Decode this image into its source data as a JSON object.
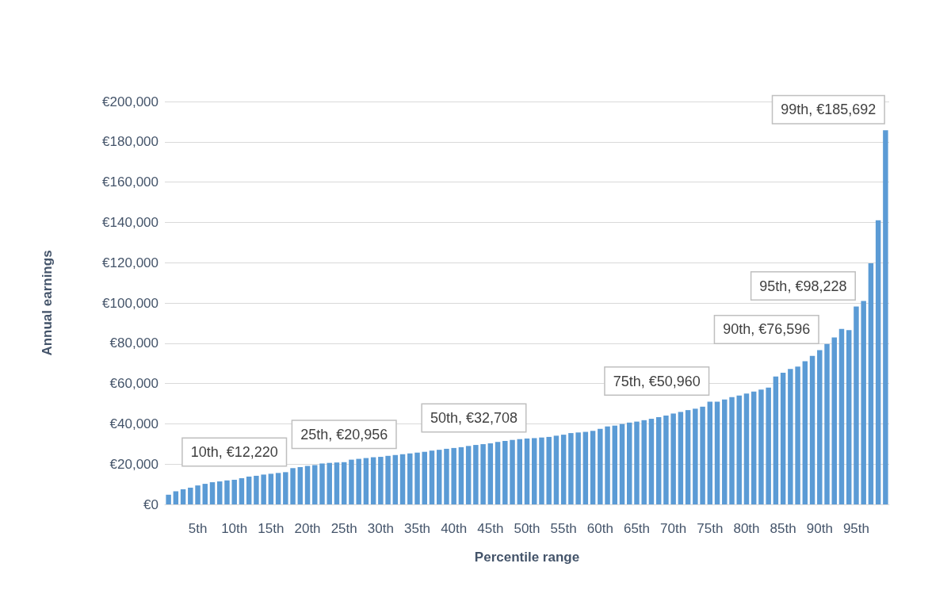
{
  "chart_data": {
    "type": "bar",
    "xlabel": "Percentile range",
    "ylabel": "Annual earnings",
    "categories": [
      null,
      null,
      null,
      null,
      "5th",
      null,
      null,
      null,
      null,
      "10th",
      null,
      null,
      null,
      null,
      "15th",
      null,
      null,
      null,
      null,
      "20th",
      null,
      null,
      null,
      null,
      "25th",
      null,
      null,
      null,
      null,
      "30th",
      null,
      null,
      null,
      null,
      "35th",
      null,
      null,
      null,
      null,
      "40th",
      null,
      null,
      null,
      null,
      "45th",
      null,
      null,
      null,
      null,
      "50th",
      null,
      null,
      null,
      null,
      "55th",
      null,
      null,
      null,
      null,
      "60th",
      null,
      null,
      null,
      null,
      "65th",
      null,
      null,
      null,
      null,
      "70th",
      null,
      null,
      null,
      null,
      "75th",
      null,
      null,
      null,
      null,
      "80th",
      null,
      null,
      null,
      null,
      "85th",
      null,
      null,
      null,
      null,
      "90th",
      null,
      null,
      null,
      null,
      "95th",
      null,
      null,
      null,
      null
    ],
    "values": [
      4800,
      6500,
      7500,
      8300,
      9400,
      10200,
      11000,
      11400,
      11900,
      12220,
      13000,
      13800,
      14200,
      14800,
      15200,
      15600,
      16000,
      18000,
      18500,
      19100,
      19500,
      20300,
      20600,
      20800,
      20956,
      22200,
      22600,
      23000,
      23400,
      23600,
      24100,
      24500,
      24900,
      25300,
      25700,
      26100,
      26700,
      27100,
      27600,
      28000,
      28400,
      29000,
      29500,
      29900,
      30300,
      31000,
      31500,
      32000,
      32400,
      32708,
      32900,
      33200,
      33500,
      34100,
      34600,
      35400,
      35700,
      36000,
      36500,
      37500,
      38700,
      39100,
      39900,
      40600,
      41100,
      41800,
      42500,
      43300,
      44100,
      45100,
      45900,
      46800,
      47500,
      48500,
      50960,
      51000,
      52100,
      53200,
      54000,
      55000,
      56000,
      57000,
      58000,
      63500,
      65400,
      67200,
      68400,
      71100,
      73700,
      76596,
      79600,
      82900,
      87100,
      86500,
      98228,
      101000,
      119700,
      141000,
      185692
    ],
    "color": "#5b9bd5",
    "ylim": [
      0,
      200000
    ],
    "yticks": [
      {
        "value": 0,
        "label": "€0"
      },
      {
        "value": 20000,
        "label": "€20,000"
      },
      {
        "value": 40000,
        "label": "€40,000"
      },
      {
        "value": 60000,
        "label": "€60,000"
      },
      {
        "value": 80000,
        "label": "€80,000"
      },
      {
        "value": 100000,
        "label": "€100,000"
      },
      {
        "value": 120000,
        "label": "€120,000"
      },
      {
        "value": 140000,
        "label": "€140,000"
      },
      {
        "value": 160000,
        "label": "€160,000"
      },
      {
        "value": 180000,
        "label": "€180,000"
      },
      {
        "value": 200000,
        "label": "€200,000"
      }
    ],
    "grid": "y",
    "annotations": [
      {
        "text": "10th, €12,220",
        "x": "10th",
        "y": 12220
      },
      {
        "text": "25th, €20,956",
        "x": "25th",
        "y": 20956
      },
      {
        "text": "50th, €32,708",
        "x": "50th",
        "y": 32708
      },
      {
        "text": "75th, €50,960",
        "x": "75th",
        "y": 50960
      },
      {
        "text": "90th, €76,596",
        "x": "90th",
        "y": 76596
      },
      {
        "text": "95th, €98,228",
        "x": "95th",
        "y": 98228
      },
      "99th, €185,692"
    ]
  }
}
